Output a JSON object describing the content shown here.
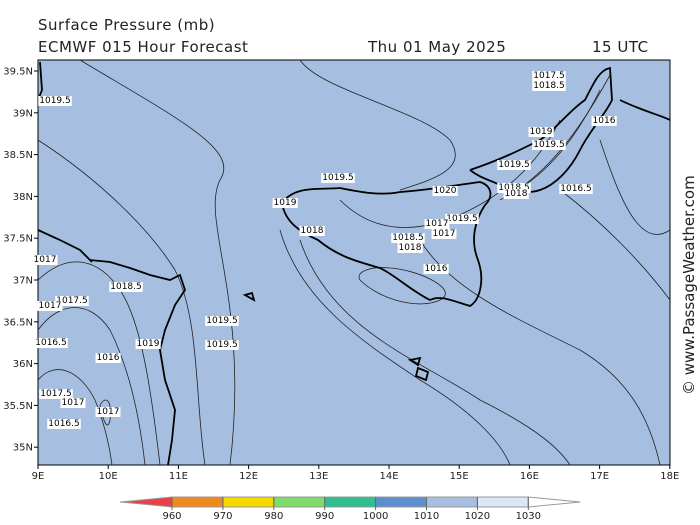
{
  "header": {
    "title": "Surface Pressure (mb)",
    "subtitle": "ECMWF 015 Hour Forecast",
    "date": "Thu 01 May 2025",
    "time": "15 UTC"
  },
  "axes": {
    "lat_ticks": [
      "39.5N",
      "39N",
      "38.5N",
      "38N",
      "37.5N",
      "37N",
      "36.5N",
      "36N",
      "35.5N",
      "35N"
    ],
    "lon_ticks": [
      "9E",
      "10E",
      "11E",
      "12E",
      "13E",
      "14E",
      "15E",
      "16E",
      "17E",
      "18E"
    ]
  },
  "contour_labels": [
    "1019.5",
    "1019.5",
    "1019",
    "1018",
    "1020",
    "1019.5",
    "1017",
    "1017",
    "1018.5",
    "1018",
    "1016",
    "1019",
    "1019.5",
    "1019.5",
    "1018.5",
    "1018",
    "1017.5",
    "1018.5",
    "1016",
    "1016.5",
    "1017",
    "1018.5",
    "1017.5",
    "1017",
    "1016.5",
    "1016",
    "1019",
    "1019.5",
    "1019.5",
    "1017.5",
    "1017",
    "1017",
    "1016.5"
  ],
  "legend": {
    "levels": [
      960,
      970,
      980,
      990,
      1000,
      1010,
      1020,
      1030
    ],
    "colors": [
      "#e8414a",
      "#f08a1e",
      "#f5d800",
      "#7ddc6a",
      "#2fbf8f",
      "#5b8fd0",
      "#a6bfe0",
      "#dce6f4",
      "#ffffff"
    ]
  },
  "credit": "© www.PassageWeather.com"
}
